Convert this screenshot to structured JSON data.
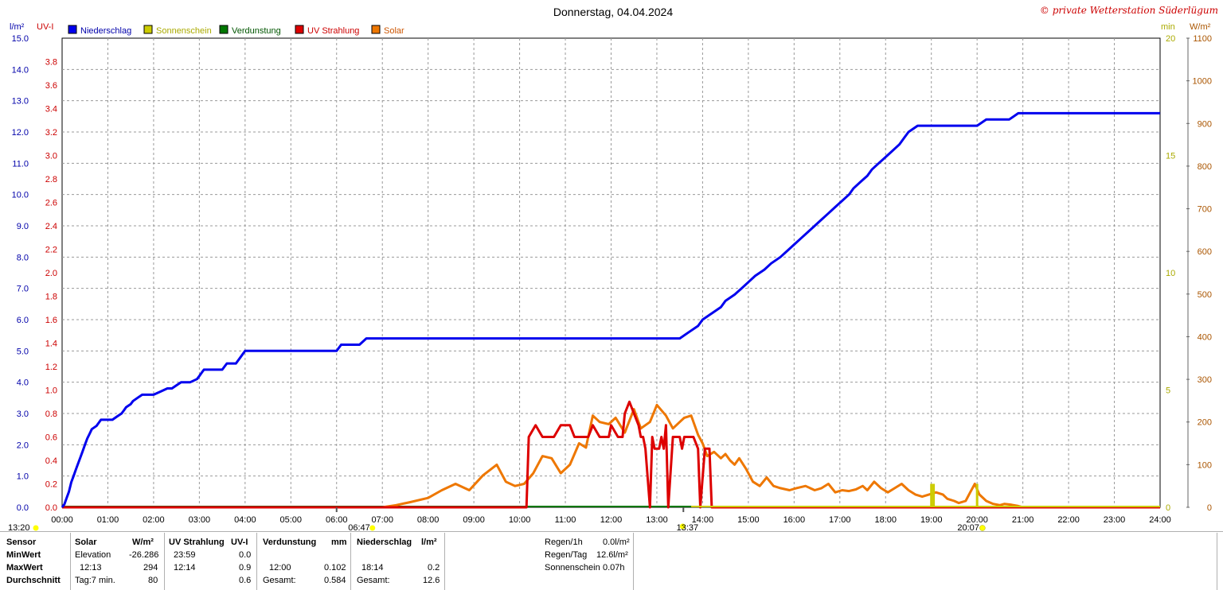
{
  "title": "Donnerstag, 04.04.2024",
  "copyright": "© private Wetterstation Süderlügum",
  "colors": {
    "rain": "#0000ee",
    "sun": "#cccc00",
    "evap": "#007700",
    "uv": "#dd0000",
    "solar": "#ee7700",
    "uvAxis": "#cc0000",
    "rainAxis": "#0000aa",
    "sunAxis": "#aaaa00",
    "solarAxis": "#aa5500"
  },
  "chart_data": {
    "type": "line",
    "title": "Donnerstag, 04.04.2024",
    "x_ticks": [
      "00:00",
      "01:00",
      "02:00",
      "03:00",
      "04:00",
      "05:00",
      "06:00",
      "07:00",
      "08:00",
      "09:00",
      "10:00",
      "11:00",
      "12:00",
      "13:00",
      "14:00",
      "15:00",
      "16:00",
      "17:00",
      "18:00",
      "19:00",
      "20:00",
      "21:00",
      "22:00",
      "23:00",
      "24:00"
    ],
    "xlim": [
      0,
      24
    ],
    "axes": {
      "rain": {
        "unit": "l/m²",
        "min": 0,
        "max": 15,
        "ticks": [
          "0.0",
          "1.0",
          "2.0",
          "3.0",
          "4.0",
          "5.0",
          "6.0",
          "7.0",
          "8.0",
          "9.0",
          "10.0",
          "11.0",
          "12.0",
          "13.0",
          "14.0",
          "15.0"
        ]
      },
      "uv": {
        "unit": "UV-I",
        "min": 0,
        "max": 4,
        "ticks": [
          "0.0",
          "0.2",
          "0.4",
          "0.6",
          "0.8",
          "1.0",
          "1.2",
          "1.4",
          "1.6",
          "1.8",
          "2.0",
          "2.2",
          "2.4",
          "2.6",
          "2.8",
          "3.0",
          "3.2",
          "3.4",
          "3.6",
          "3.8"
        ]
      },
      "sun": {
        "unit": "min",
        "min": 0,
        "max": 20,
        "ticks": [
          "0",
          "5",
          "10",
          "15",
          "20"
        ]
      },
      "solar": {
        "unit": "W/m²",
        "min": 0,
        "max": 1100,
        "ticks": [
          "0",
          "100",
          "200",
          "300",
          "400",
          "500",
          "600",
          "700",
          "800",
          "900",
          "1000",
          "1100"
        ]
      }
    },
    "legend": [
      "Niederschlag",
      "Sonnenschein",
      "Verdunstung",
      "UV Strahlung",
      "Solar"
    ],
    "series": [
      {
        "name": "Niederschlag",
        "axis": "rain",
        "points": [
          [
            0,
            0
          ],
          [
            0.05,
            0.1
          ],
          [
            0.1,
            0.3
          ],
          [
            0.15,
            0.5
          ],
          [
            0.2,
            0.8
          ],
          [
            0.25,
            1.0
          ],
          [
            0.3,
            1.2
          ],
          [
            0.35,
            1.4
          ],
          [
            0.4,
            1.6
          ],
          [
            0.45,
            1.8
          ],
          [
            0.5,
            2.0
          ],
          [
            0.55,
            2.2
          ],
          [
            0.6,
            2.35
          ],
          [
            0.65,
            2.5
          ],
          [
            0.75,
            2.6
          ],
          [
            0.85,
            2.8
          ],
          [
            1.1,
            2.8
          ],
          [
            1.2,
            2.9
          ],
          [
            1.3,
            3.0
          ],
          [
            1.35,
            3.1
          ],
          [
            1.4,
            3.2
          ],
          [
            1.5,
            3.3
          ],
          [
            1.55,
            3.4
          ],
          [
            1.65,
            3.5
          ],
          [
            1.75,
            3.6
          ],
          [
            1.85,
            3.6
          ],
          [
            2.0,
            3.6
          ],
          [
            2.15,
            3.7
          ],
          [
            2.3,
            3.8
          ],
          [
            2.4,
            3.8
          ],
          [
            2.5,
            3.9
          ],
          [
            2.6,
            4.0
          ],
          [
            2.8,
            4.0
          ],
          [
            2.95,
            4.1
          ],
          [
            3.0,
            4.2
          ],
          [
            3.05,
            4.3
          ],
          [
            3.1,
            4.4
          ],
          [
            3.5,
            4.4
          ],
          [
            3.6,
            4.6
          ],
          [
            3.8,
            4.6
          ],
          [
            3.9,
            4.8
          ],
          [
            4.0,
            5.0
          ],
          [
            6.0,
            5.0
          ],
          [
            6.1,
            5.2
          ],
          [
            6.5,
            5.2
          ],
          [
            6.65,
            5.4
          ],
          [
            13.2,
            5.4
          ],
          [
            13.5,
            5.4
          ],
          [
            13.7,
            5.6
          ],
          [
            13.9,
            5.8
          ],
          [
            14.0,
            6.0
          ],
          [
            14.2,
            6.2
          ],
          [
            14.4,
            6.4
          ],
          [
            14.5,
            6.6
          ],
          [
            14.7,
            6.8
          ],
          [
            14.85,
            7.0
          ],
          [
            15.0,
            7.2
          ],
          [
            15.15,
            7.4
          ],
          [
            15.35,
            7.6
          ],
          [
            15.5,
            7.8
          ],
          [
            15.7,
            8.0
          ],
          [
            15.85,
            8.2
          ],
          [
            16.0,
            8.4
          ],
          [
            16.15,
            8.6
          ],
          [
            16.3,
            8.8
          ],
          [
            16.45,
            9.0
          ],
          [
            16.6,
            9.2
          ],
          [
            16.75,
            9.4
          ],
          [
            16.9,
            9.6
          ],
          [
            17.05,
            9.8
          ],
          [
            17.2,
            10.0
          ],
          [
            17.3,
            10.2
          ],
          [
            17.45,
            10.4
          ],
          [
            17.6,
            10.6
          ],
          [
            17.7,
            10.8
          ],
          [
            17.85,
            11.0
          ],
          [
            18.0,
            11.2
          ],
          [
            18.15,
            11.4
          ],
          [
            18.3,
            11.6
          ],
          [
            18.4,
            11.8
          ],
          [
            18.5,
            12.0
          ],
          [
            18.7,
            12.2
          ],
          [
            20.0,
            12.2
          ],
          [
            20.2,
            12.4
          ],
          [
            20.7,
            12.4
          ],
          [
            20.9,
            12.6
          ],
          [
            24.0,
            12.6
          ]
        ]
      },
      {
        "name": "UV Strahlung",
        "axis": "uv",
        "points": [
          [
            0,
            0
          ],
          [
            10.15,
            0
          ],
          [
            10.2,
            0.6
          ],
          [
            10.35,
            0.7
          ],
          [
            10.5,
            0.6
          ],
          [
            10.75,
            0.6
          ],
          [
            10.9,
            0.7
          ],
          [
            11.1,
            0.7
          ],
          [
            11.2,
            0.6
          ],
          [
            11.5,
            0.6
          ],
          [
            11.6,
            0.7
          ],
          [
            11.75,
            0.6
          ],
          [
            11.95,
            0.6
          ],
          [
            12.0,
            0.7
          ],
          [
            12.15,
            0.6
          ],
          [
            12.25,
            0.6
          ],
          [
            12.3,
            0.8
          ],
          [
            12.4,
            0.9
          ],
          [
            12.5,
            0.8
          ],
          [
            12.6,
            0.7
          ],
          [
            12.65,
            0.6
          ],
          [
            12.7,
            0.6
          ],
          [
            12.75,
            0.5
          ],
          [
            12.85,
            0
          ],
          [
            12.9,
            0.6
          ],
          [
            12.95,
            0.5
          ],
          [
            13.05,
            0.5
          ],
          [
            13.1,
            0.6
          ],
          [
            13.15,
            0.5
          ],
          [
            13.2,
            0.7
          ],
          [
            13.25,
            0
          ],
          [
            13.35,
            0.6
          ],
          [
            13.5,
            0.6
          ],
          [
            13.55,
            0.5
          ],
          [
            13.6,
            0.6
          ],
          [
            13.75,
            0.6
          ],
          [
            13.8,
            0.6
          ],
          [
            13.9,
            0.5
          ],
          [
            13.95,
            0
          ],
          [
            14.05,
            0.5
          ],
          [
            14.15,
            0.5
          ],
          [
            14.2,
            0
          ],
          [
            24.0,
            0
          ]
        ]
      },
      {
        "name": "Solar",
        "axis": "solar",
        "points": [
          [
            0,
            0
          ],
          [
            7.0,
            0
          ],
          [
            7.3,
            5
          ],
          [
            7.6,
            12
          ],
          [
            8.0,
            22
          ],
          [
            8.3,
            40
          ],
          [
            8.6,
            55
          ],
          [
            8.9,
            40
          ],
          [
            9.2,
            75
          ],
          [
            9.5,
            100
          ],
          [
            9.7,
            60
          ],
          [
            9.9,
            50
          ],
          [
            10.1,
            55
          ],
          [
            10.3,
            80
          ],
          [
            10.5,
            120
          ],
          [
            10.7,
            115
          ],
          [
            10.9,
            80
          ],
          [
            11.1,
            100
          ],
          [
            11.3,
            150
          ],
          [
            11.45,
            140
          ],
          [
            11.6,
            215
          ],
          [
            11.75,
            200
          ],
          [
            11.95,
            195
          ],
          [
            12.1,
            210
          ],
          [
            12.3,
            175
          ],
          [
            12.5,
            230
          ],
          [
            12.65,
            185
          ],
          [
            12.85,
            200
          ],
          [
            13.0,
            240
          ],
          [
            13.2,
            215
          ],
          [
            13.35,
            185
          ],
          [
            13.5,
            200
          ],
          [
            13.6,
            210
          ],
          [
            13.75,
            215
          ],
          [
            13.9,
            170
          ],
          [
            14.0,
            150
          ],
          [
            14.1,
            120
          ],
          [
            14.25,
            130
          ],
          [
            14.4,
            115
          ],
          [
            14.5,
            125
          ],
          [
            14.6,
            110
          ],
          [
            14.7,
            100
          ],
          [
            14.8,
            115
          ],
          [
            14.95,
            90
          ],
          [
            15.1,
            60
          ],
          [
            15.25,
            50
          ],
          [
            15.4,
            70
          ],
          [
            15.55,
            50
          ],
          [
            15.7,
            45
          ],
          [
            15.9,
            40
          ],
          [
            16.05,
            45
          ],
          [
            16.25,
            50
          ],
          [
            16.45,
            40
          ],
          [
            16.6,
            45
          ],
          [
            16.75,
            55
          ],
          [
            16.9,
            35
          ],
          [
            17.05,
            40
          ],
          [
            17.2,
            38
          ],
          [
            17.35,
            42
          ],
          [
            17.5,
            50
          ],
          [
            17.6,
            40
          ],
          [
            17.75,
            60
          ],
          [
            17.9,
            45
          ],
          [
            18.05,
            35
          ],
          [
            18.2,
            45
          ],
          [
            18.35,
            55
          ],
          [
            18.5,
            40
          ],
          [
            18.65,
            30
          ],
          [
            18.8,
            25
          ],
          [
            18.95,
            30
          ],
          [
            19.1,
            35
          ],
          [
            19.25,
            30
          ],
          [
            19.35,
            20
          ],
          [
            19.5,
            15
          ],
          [
            19.6,
            10
          ],
          [
            19.75,
            15
          ],
          [
            19.85,
            35
          ],
          [
            19.95,
            55
          ],
          [
            20.05,
            30
          ],
          [
            20.2,
            15
          ],
          [
            20.35,
            8
          ],
          [
            20.5,
            5
          ],
          [
            20.6,
            8
          ],
          [
            20.75,
            6
          ],
          [
            20.9,
            3
          ],
          [
            21.0,
            0
          ],
          [
            24.0,
            0
          ]
        ]
      }
    ],
    "bars": [
      {
        "name": "Sonnenschein",
        "axis": "sun",
        "points": [
          [
            19.0,
            1.0
          ],
          [
            19.05,
            1.0
          ],
          [
            20.0,
            1.0
          ]
        ]
      }
    ],
    "markers": {
      "sunrise": "06:47",
      "solar_noon": "13:37",
      "sunset": "20:07",
      "moon_left": "13:20"
    }
  },
  "table": {
    "headers": {
      "sensor": "Sensor",
      "solar": "Solar",
      "solar_unit": "W/m²",
      "uv": "UV Strahlung",
      "uv_unit": "UV-I",
      "evap": "Verdunstung",
      "evap_unit": "mm",
      "rain": "Niederschlag",
      "rain_unit": "l/m²"
    },
    "rows": [
      {
        "label": "MinWert",
        "solar_time": "Elevation",
        "solar_val": "-26.286",
        "uv_time": "23:59",
        "uv_val": "0.0",
        "evap_time": "",
        "evap_val": "",
        "rain_time": "",
        "rain_val": ""
      },
      {
        "label": "MaxWert",
        "solar_time": "12:13",
        "solar_val": "294",
        "uv_time": "12:14",
        "uv_val": "0.9",
        "evap_time": "12:00",
        "evap_val": "0.102",
        "rain_time": "18:14",
        "rain_val": "0.2"
      },
      {
        "label": "Durchschnitt",
        "solar_time": "Tag:7 min.",
        "solar_val": "80",
        "uv_time": "",
        "uv_val": "0.6",
        "evap_time": "Gesamt:",
        "evap_val": "0.584",
        "rain_time": "Gesamt:",
        "rain_val": "12.6"
      }
    ],
    "extra": [
      {
        "label": "Regen/1h",
        "value": "0.0l/m²"
      },
      {
        "label": "Regen/Tag",
        "value": "12.6l/m²"
      },
      {
        "label": "Sonnenschein",
        "value": "0.07h"
      }
    ]
  }
}
